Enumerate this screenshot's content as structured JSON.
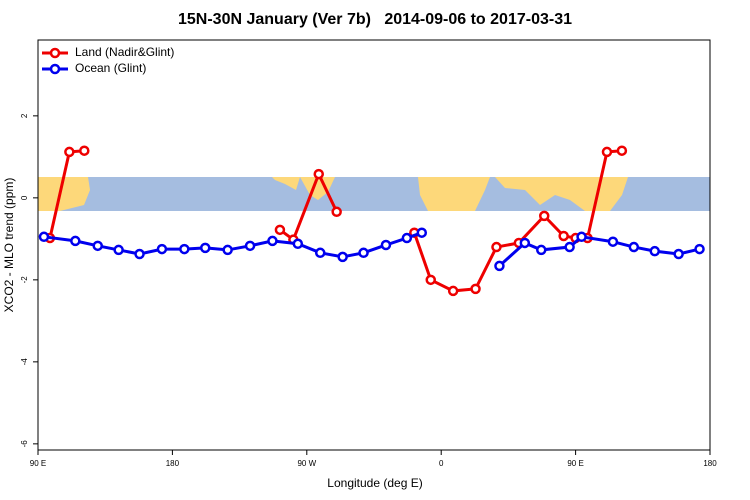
{
  "chart_data": {
    "type": "line",
    "title": "15N-30N January (Ver 7b)   2014-09-06 to 2017-03-31",
    "x_label": "Longitude (deg E)",
    "y_label": "XCO2 - MLO trend (ppm)",
    "xlim": [
      90,
      540
    ],
    "xticks": [
      {
        "value": 90,
        "label": "90 E"
      },
      {
        "value": 180,
        "label": "180"
      },
      {
        "value": 270,
        "label": "90 W"
      },
      {
        "value": 360,
        "label": "0"
      },
      {
        "value": 450,
        "label": "90 E"
      },
      {
        "value": 540,
        "label": "180"
      }
    ],
    "ylim": [
      -6.15,
      3.85
    ],
    "yticks": [
      -6,
      -4,
      -2,
      0,
      2
    ],
    "legend": "top-left",
    "series": [
      {
        "name": "Land (Nadir&Glint)",
        "color": "#ee0000",
        "x": [
          98,
          111,
          121,
          190,
          252,
          261,
          278,
          290,
          320,
          342,
          353,
          368,
          383,
          397,
          412,
          429,
          442,
          450,
          458,
          471,
          481
        ],
        "values": [
          -0.98,
          1.12,
          1.15,
          null,
          -0.78,
          -1.02,
          0.58,
          -0.34,
          null,
          -0.85,
          -2.0,
          -2.27,
          -2.22,
          -1.2,
          -1.1,
          -0.44,
          -0.93,
          -0.98,
          -0.98,
          1.12,
          1.15
        ]
      },
      {
        "name": "Ocean (Glint)",
        "color": "#0000ee",
        "x": [
          94,
          115,
          130,
          144,
          158,
          173,
          188,
          202,
          217,
          232,
          247,
          264,
          279,
          294,
          308,
          323,
          337,
          347,
          370,
          399,
          416,
          427,
          446,
          454,
          475,
          489,
          503,
          519,
          533
        ],
        "values": [
          -0.95,
          -1.05,
          -1.17,
          -1.27,
          -1.37,
          -1.25,
          -1.25,
          -1.22,
          -1.27,
          -1.17,
          -1.05,
          -1.12,
          -1.34,
          -1.44,
          -1.34,
          -1.15,
          -0.98,
          -0.85,
          null,
          -1.66,
          -1.1,
          -1.27,
          -1.2,
          -0.95,
          -1.07,
          -1.2,
          -1.3,
          -1.37,
          -1.25
        ]
      }
    ]
  }
}
